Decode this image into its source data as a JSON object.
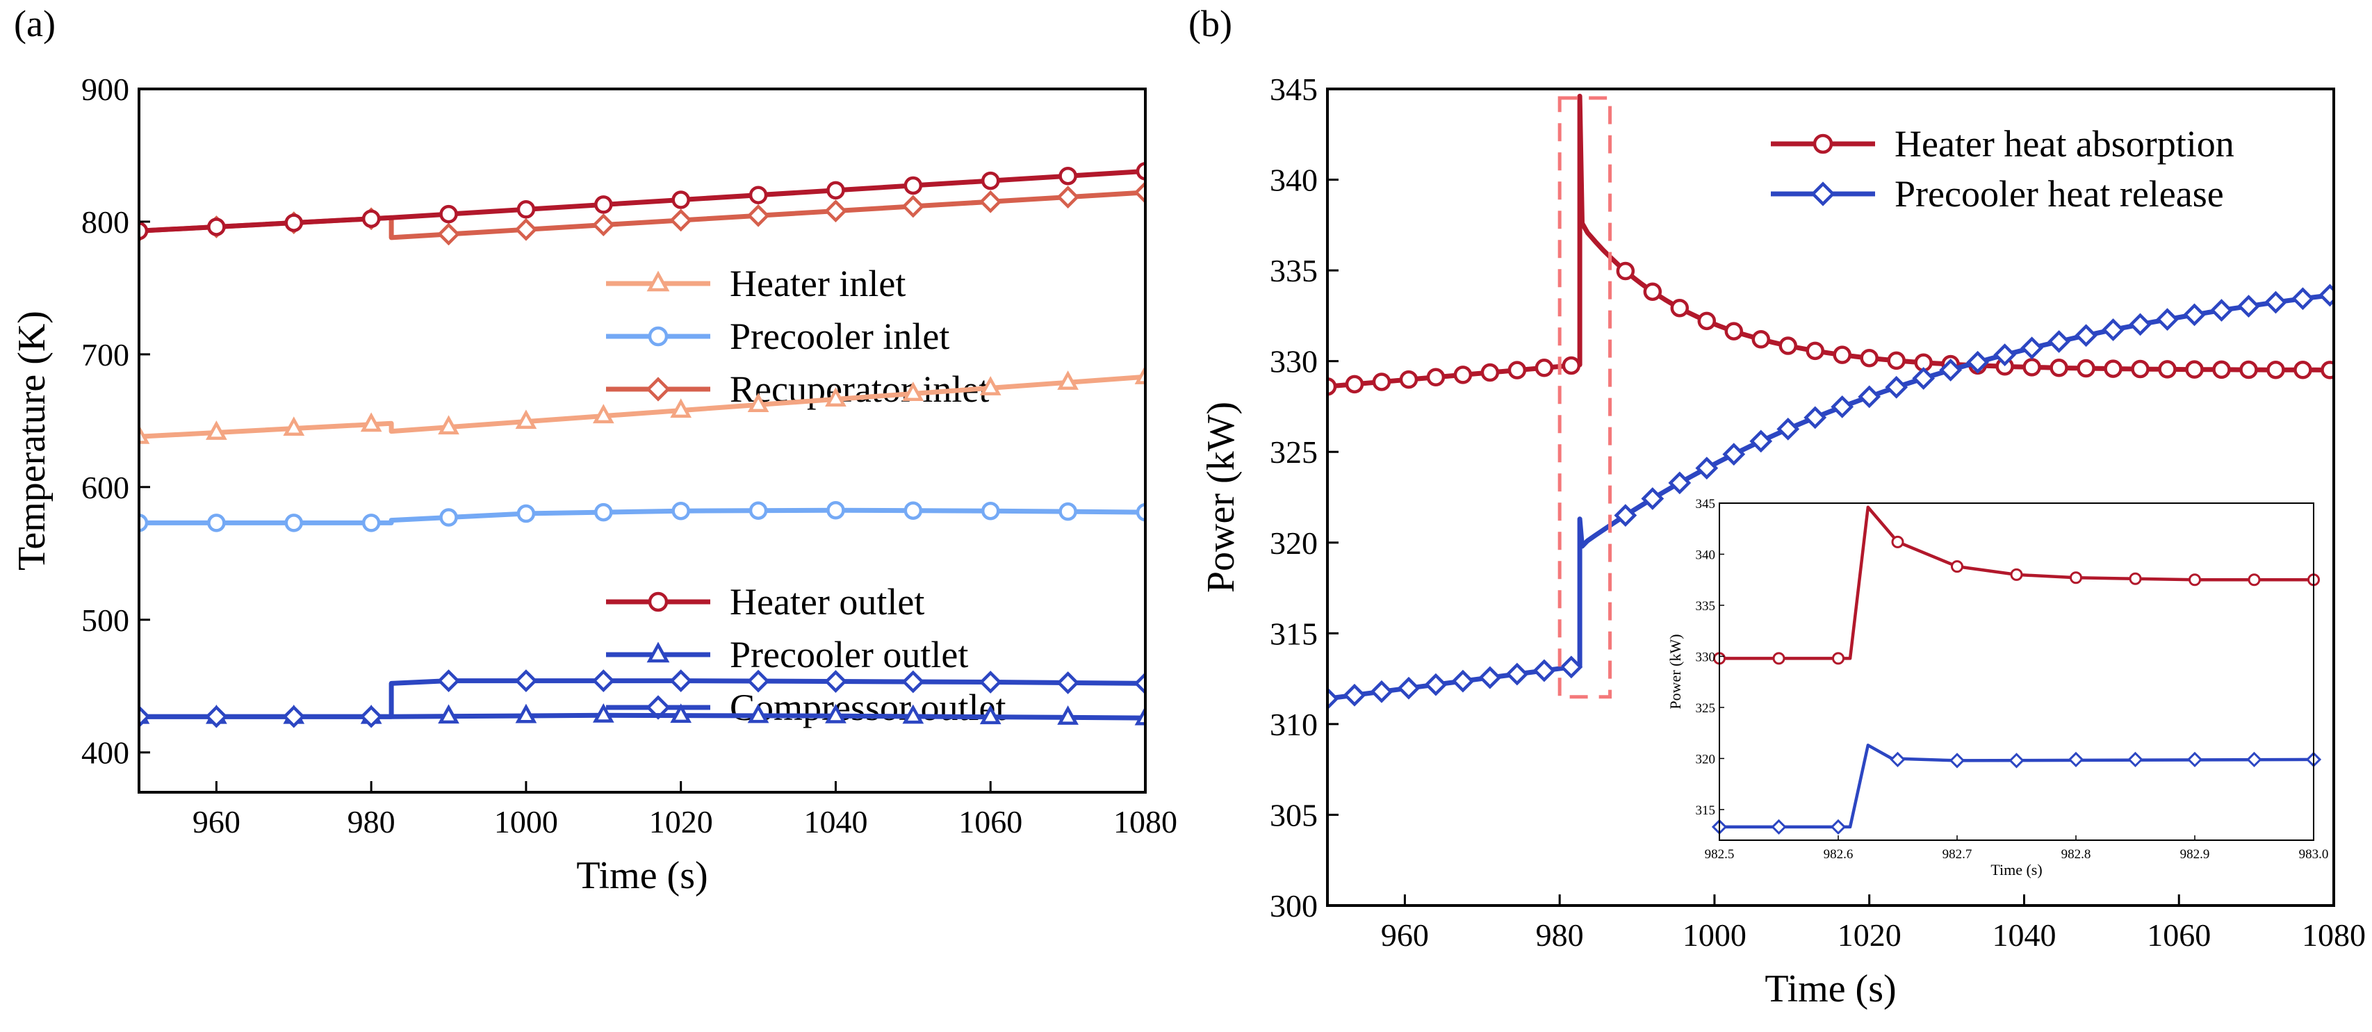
{
  "panel_labels": {
    "a": "(a)",
    "b": "(b)"
  },
  "chart_data": [
    {
      "type": "line",
      "id": "a",
      "xlabel": "Time (s)",
      "ylabel": "Temperature (K)",
      "xlim": [
        950,
        1080
      ],
      "ylim": [
        370,
        900
      ],
      "xticks": [
        960,
        980,
        1000,
        1020,
        1040,
        1060,
        1080
      ],
      "yticks": [
        400,
        500,
        600,
        700,
        800,
        900
      ],
      "step_time": 982.6,
      "series": [
        {
          "name": "Heater inlet",
          "color": "#F4A582",
          "marker": "triangle",
          "pre": [
            [
              950,
              638
            ],
            [
              982.6,
              648
            ]
          ],
          "post": [
            [
              982.6,
              642
            ],
            [
              1080,
              683
            ]
          ]
        },
        {
          "name": "Precooler inlet",
          "color": "#74A9F5",
          "marker": "circle",
          "pre": [
            [
              950,
              573
            ],
            [
              982.6,
              573
            ]
          ],
          "post": [
            [
              982.6,
              575
            ],
            [
              1000,
              580
            ],
            [
              1020,
              582
            ],
            [
              1040,
              582.5
            ],
            [
              1060,
              582
            ],
            [
              1080,
              581
            ]
          ]
        },
        {
          "name": "Recuperator inlet",
          "color": "#D6604D",
          "marker": "diamond",
          "pre": [
            [
              950,
              793
            ],
            [
              982.6,
              803
            ]
          ],
          "post": [
            [
              982.6,
              788
            ],
            [
              1080,
              822
            ]
          ]
        },
        {
          "name": "Heater outlet",
          "color": "#B2182B",
          "marker": "circle",
          "pre": [
            [
              950,
              793
            ],
            [
              982.6,
              803
            ]
          ],
          "post": [
            [
              982.6,
              803
            ],
            [
              1080,
              838
            ]
          ]
        },
        {
          "name": "Precooler outlet",
          "color": "#2C46C2",
          "marker": "triangle",
          "pre": [
            [
              950,
              427
            ],
            [
              982.6,
              427
            ]
          ],
          "post": [
            [
              982.6,
              427
            ],
            [
              1010,
              428
            ],
            [
              1040,
              427.5
            ],
            [
              1080,
              426
            ]
          ]
        },
        {
          "name": "Compressor outlet",
          "color": "#2C46C2",
          "marker": "diamond",
          "pre": [
            [
              950,
              427
            ],
            [
              982.6,
              427
            ]
          ],
          "post": [
            [
              982.6,
              452
            ],
            [
              990,
              454
            ],
            [
              1020,
              454
            ],
            [
              1060,
              453
            ],
            [
              1080,
              452
            ]
          ]
        }
      ],
      "legend_groups": [
        [
          "Heater inlet",
          "Precooler inlet",
          "Recuperator inlet"
        ],
        [
          "Heater outlet",
          "Precooler outlet",
          "Compressor outlet"
        ]
      ]
    },
    {
      "type": "line",
      "id": "b",
      "xlabel": "Time (s)",
      "ylabel": "Power (kW)",
      "xlim": [
        950,
        1080
      ],
      "ylim": [
        300,
        345
      ],
      "xticks": [
        960,
        980,
        1000,
        1020,
        1040,
        1060,
        1080
      ],
      "yticks": [
        300,
        305,
        310,
        315,
        320,
        325,
        330,
        335,
        340,
        345
      ],
      "step_time": 982.6,
      "highlight_box": {
        "x": [
          980,
          986.5
        ],
        "y": [
          311.5,
          344.5
        ]
      },
      "series": [
        {
          "name": "Heater heat absorption",
          "color": "#B2182B",
          "marker": "circle",
          "step_model": {
            "pre_start": 328.6,
            "pre_end": 329.8,
            "peak": 344.6,
            "jump_to": 337.6,
            "final": 329.5,
            "tau": 15
          }
        },
        {
          "name": "Precooler heat release",
          "color": "#2C46C2",
          "marker": "diamond",
          "step_model": {
            "pre_start": 311.4,
            "pre_end": 313.2,
            "peak": 321.3,
            "jump_to": 319.8,
            "final": 336.5,
            "tau": 55
          }
        }
      ],
      "inset": {
        "xlabel": "Time (s)",
        "ylabel": "Power (kW)",
        "xlim": [
          982.5,
          983.0
        ],
        "ylim": [
          312,
          345
        ],
        "xticks": [
          982.5,
          982.6,
          982.7,
          982.8,
          982.9,
          983.0
        ],
        "xtick_labels": [
          "982.5",
          "982.6",
          "982.7",
          "982.8",
          "982.9",
          "983.0"
        ],
        "yticks": [
          315,
          320,
          325,
          330,
          335,
          340,
          345
        ],
        "series": [
          {
            "name": "Heater heat absorption",
            "color": "#B2182B",
            "marker": "circle",
            "points": [
              [
                982.5,
                329.8
              ],
              [
                982.61,
                329.8
              ],
              [
                982.625,
                344.6
              ],
              [
                982.65,
                341.2
              ],
              [
                982.7,
                338.8
              ],
              [
                982.75,
                338.0
              ],
              [
                982.8,
                337.7
              ],
              [
                982.85,
                337.6
              ],
              [
                982.9,
                337.5
              ],
              [
                982.95,
                337.5
              ],
              [
                983.0,
                337.5
              ]
            ],
            "markers": [
              [
                982.5,
                329.8
              ],
              [
                982.55,
                329.8
              ],
              [
                982.6,
                329.8
              ],
              [
                982.65,
                341.2
              ],
              [
                982.7,
                338.8
              ],
              [
                982.75,
                338.0
              ],
              [
                982.8,
                337.7
              ],
              [
                982.85,
                337.6
              ],
              [
                982.9,
                337.5
              ],
              [
                982.95,
                337.5
              ],
              [
                983.0,
                337.5
              ]
            ]
          },
          {
            "name": "Precooler heat release",
            "color": "#2C46C2",
            "marker": "diamond",
            "points": [
              [
                982.5,
                313.3
              ],
              [
                982.61,
                313.3
              ],
              [
                982.625,
                321.3
              ],
              [
                982.645,
                320.0
              ],
              [
                982.7,
                319.8
              ],
              [
                983.0,
                319.9
              ]
            ],
            "markers": [
              [
                982.5,
                313.3
              ],
              [
                982.55,
                313.3
              ],
              [
                982.6,
                313.3
              ],
              [
                982.65,
                319.9
              ],
              [
                982.7,
                319.8
              ],
              [
                982.75,
                319.8
              ],
              [
                982.8,
                319.9
              ],
              [
                982.85,
                319.9
              ],
              [
                982.9,
                319.9
              ],
              [
                982.95,
                319.9
              ],
              [
                983.0,
                319.9
              ]
            ]
          }
        ]
      }
    }
  ]
}
